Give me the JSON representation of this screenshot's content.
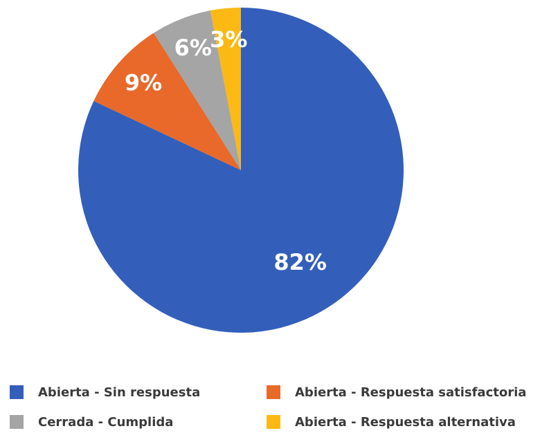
{
  "chart_data": {
    "type": "pie",
    "categories": [
      "Abierta - Sin respuesta",
      "Abierta - Respuesta satisfactoria",
      "Cerrada - Cumplida",
      "Abierta - Respuesta alternativa"
    ],
    "values": [
      82,
      9,
      6,
      3
    ],
    "value_labels": [
      "82%",
      "9%",
      "6%",
      "3%"
    ],
    "colors": [
      "#335fbb",
      "#e8692a",
      "#a5a5a5",
      "#fdb913"
    ],
    "legend": "bottom"
  }
}
